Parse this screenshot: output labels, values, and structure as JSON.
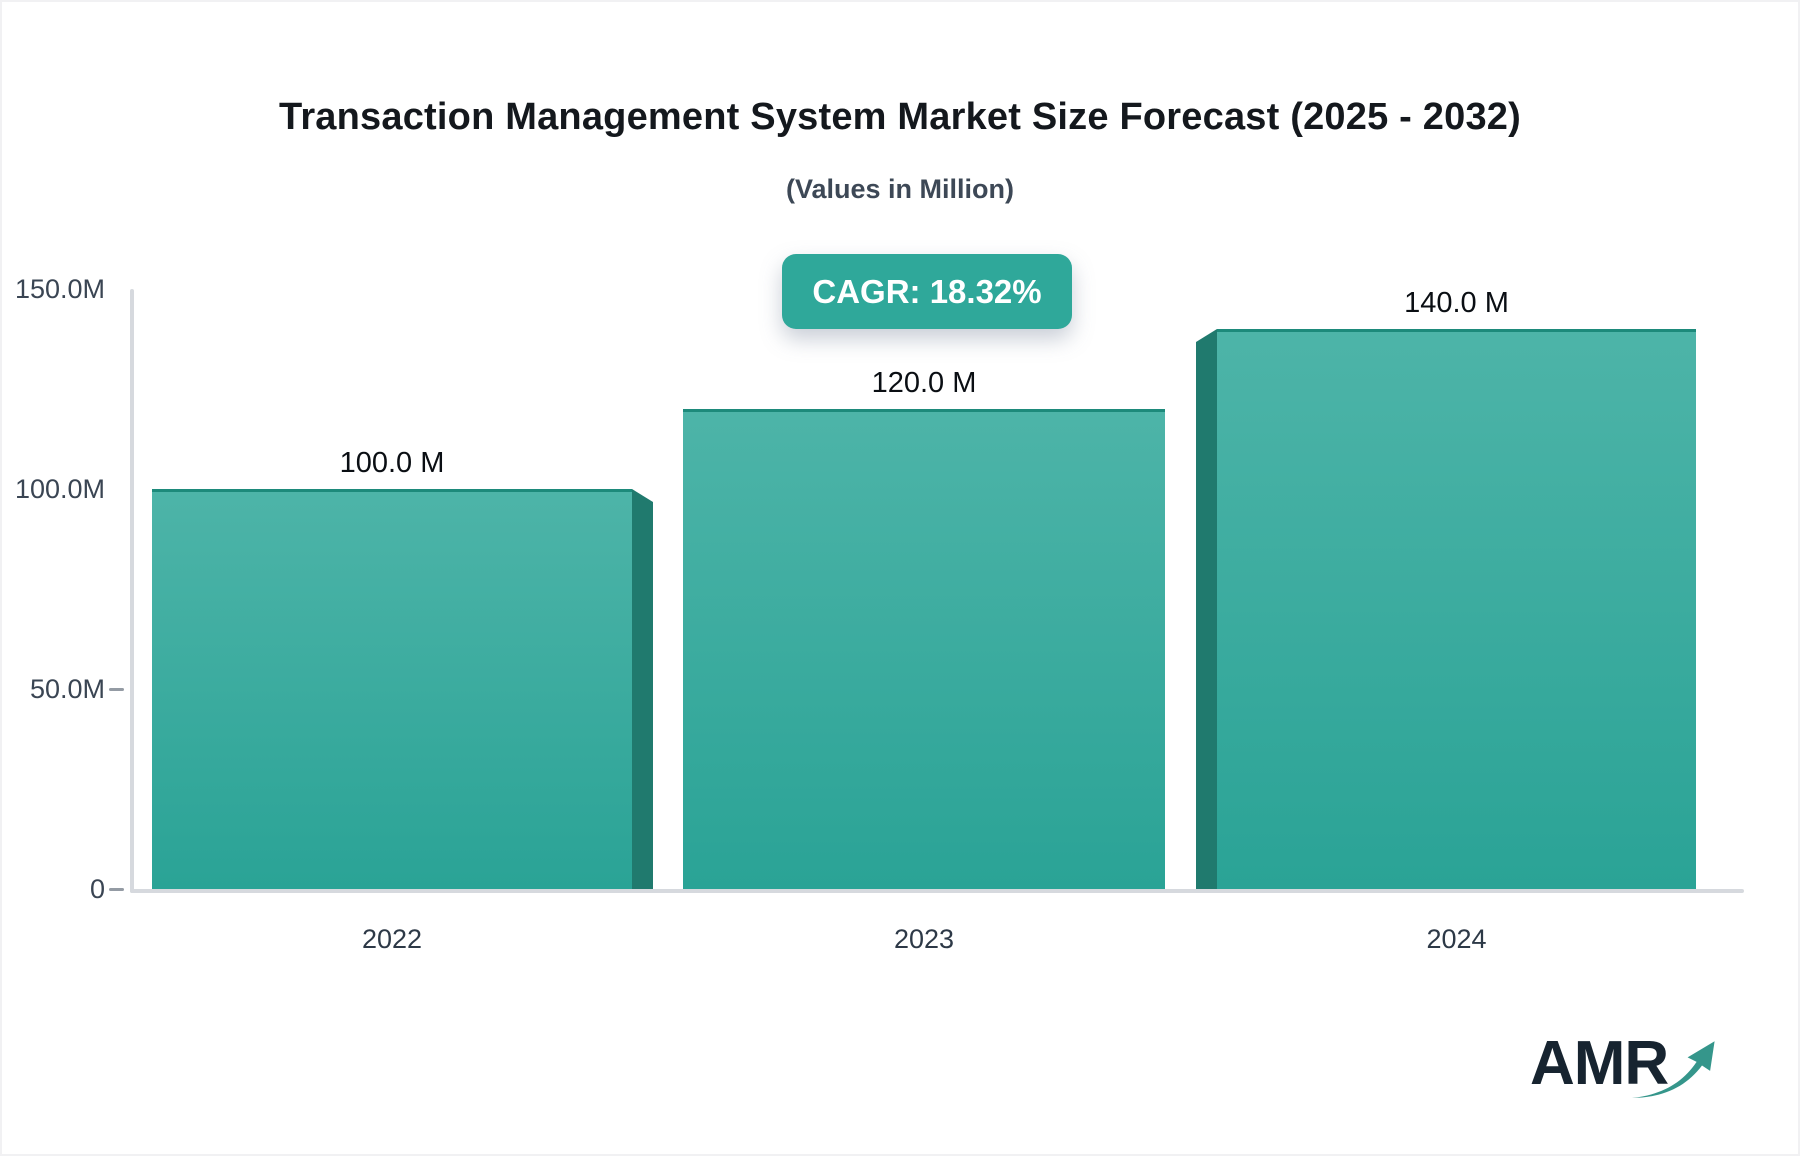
{
  "title": "Transaction Management System Market Size Forecast (2025 - 2032)",
  "subtitle": "(Values in Million)",
  "badge": {
    "label": "CAGR: 18.32%",
    "bg_color": "#2fa89a",
    "text_color": "#ffffff"
  },
  "chart_data": {
    "type": "bar",
    "categories": [
      "2022",
      "2023",
      "2024"
    ],
    "values": [
      100.0,
      120.0,
      140.0
    ],
    "value_labels": [
      "100.0 M",
      "120.0 M",
      "140.0 M"
    ],
    "title": "Transaction Management System Market Size Forecast (2025 - 2032)",
    "subtitle": "(Values in Million)",
    "xlabel": "",
    "ylabel": "",
    "ylim": [
      0,
      150
    ],
    "yticks": [
      {
        "label": "150.0M",
        "value": 150,
        "dash": false
      },
      {
        "label": "100.0M",
        "value": 100,
        "dash": false
      },
      {
        "label": "50.0M",
        "value": 50,
        "dash": true
      },
      {
        "label": "0",
        "value": 0,
        "dash": true
      }
    ],
    "grid": false,
    "legend": false,
    "colors": {
      "bar_top": "#4db4a8",
      "bar_bottom": "#2aa396",
      "bar_side": "#207a6e",
      "bar_top_border": "#1d8a7b",
      "axis_line": "#d6d9de"
    }
  },
  "logo": {
    "text": "AMR",
    "arrow_color": "#35968b"
  }
}
